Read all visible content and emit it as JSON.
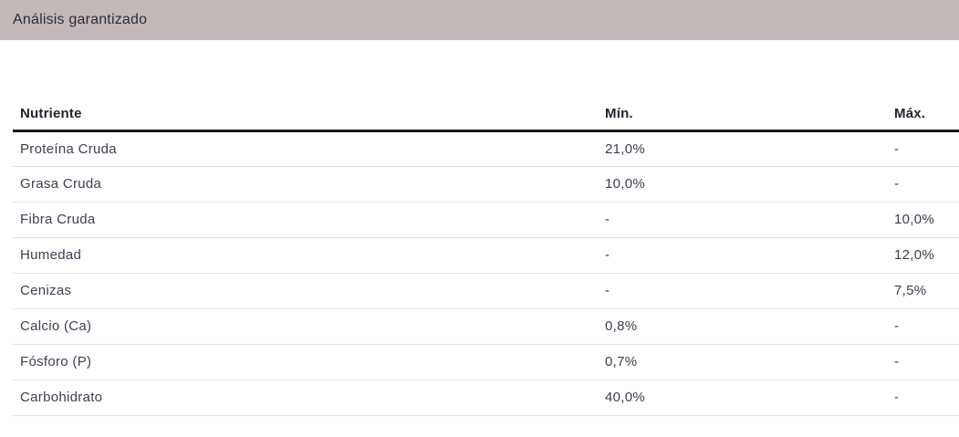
{
  "section": {
    "title": "Análisis garantizado"
  },
  "table": {
    "columns": [
      "Nutriente",
      "Mín.",
      "Máx."
    ],
    "rows": [
      {
        "nutrient": "Proteína Cruda",
        "min": "21,0%",
        "max": "-"
      },
      {
        "nutrient": "Grasa Cruda",
        "min": "10,0%",
        "max": "-"
      },
      {
        "nutrient": "Fibra Cruda",
        "min": "-",
        "max": "10,0%"
      },
      {
        "nutrient": "Humedad",
        "min": "-",
        "max": "12,0%"
      },
      {
        "nutrient": "Cenizas",
        "min": "-",
        "max": "7,5%"
      },
      {
        "nutrient": "Calcio (Ca)",
        "min": "0,8%",
        "max": "-"
      },
      {
        "nutrient": "Fósforo (P)",
        "min": "0,7%",
        "max": "-"
      },
      {
        "nutrient": "Carbohidrato",
        "min": "40,0%",
        "max": "-"
      }
    ]
  },
  "colors": {
    "section_header_bg": "#c3b9b9",
    "section_title_text": "#292d37",
    "table_header_text": "#20242d",
    "table_body_text": "#3b4150",
    "header_rule": "#1a1b22",
    "row_divider": "#e2e2e2"
  }
}
